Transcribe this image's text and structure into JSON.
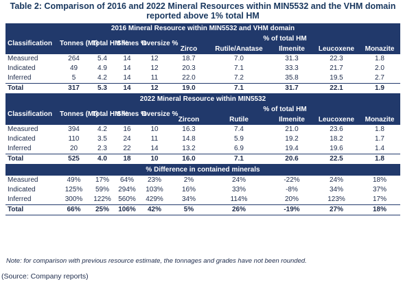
{
  "title_line1": "Table 2: Comparison of 2016 and 2022 Mineral Resources within MIN5532 and the VHM domain",
  "title_line2": "reported above 1% total HM",
  "section2016": {
    "band": "2016 Mineral Resource within MIN5532 and VHM domain",
    "pct_label": "% of total HM",
    "headers": [
      "Classification",
      "Tonnes (Mt)",
      "Total HM %",
      "Slimes %",
      "Oversize %",
      "Zirco",
      "Rutile/Anatase",
      "Ilmenite",
      "Leucoxene",
      "Monazite"
    ],
    "rows": [
      [
        "Measured",
        "264",
        "5.4",
        "14",
        "12",
        "18.7",
        "7.0",
        "31.3",
        "22.3",
        "1.8"
      ],
      [
        "Indicated",
        "49",
        "4.9",
        "14",
        "12",
        "20.3",
        "7.1",
        "33.3",
        "21.7",
        "2.0"
      ],
      [
        "Inferred",
        "5",
        "4.2",
        "14",
        "11",
        "22.0",
        "7.2",
        "35.8",
        "19.5",
        "2.7"
      ]
    ],
    "total": [
      "Total",
      "317",
      "5.3",
      "14",
      "12",
      "19.0",
      "7.1",
      "31.7",
      "22.1",
      "1.9"
    ]
  },
  "section2022": {
    "band": "2022 Mineral Resource within MIN5532",
    "pct_label": "% of total HM",
    "headers": [
      "Classification",
      "Tonnes (Mt)",
      "Total HM %",
      "Slimes %",
      "Oversize %",
      "Zircon",
      "Rutile",
      "Ilmenite",
      "Leucoxene",
      "Monazite"
    ],
    "rows": [
      [
        "Measured",
        "394",
        "4.2",
        "16",
        "10",
        "16.3",
        "7.4",
        "21.0",
        "23.6",
        "1.8"
      ],
      [
        "Indicated",
        "110",
        "3.5",
        "24",
        "11",
        "14.8",
        "5.9",
        "19.2",
        "18.2",
        "1.7"
      ],
      [
        "Inferred",
        "20",
        "2.3",
        "22",
        "14",
        "13.2",
        "6.9",
        "19.4",
        "19.6",
        "1.4"
      ]
    ],
    "total": [
      "Total",
      "525",
      "4.0",
      "18",
      "10",
      "16.0",
      "7.1",
      "20.6",
      "22.5",
      "1.8"
    ]
  },
  "difference": {
    "band": "% Difference in contained minerals",
    "rows": [
      [
        "Measured",
        "49%",
        "17%",
        "64%",
        "23%",
        "2%",
        "24%",
        "-22%",
        "24%",
        "18%"
      ],
      [
        "Indicated",
        "125%",
        "59%",
        "294%",
        "103%",
        "16%",
        "33%",
        "-8%",
        "34%",
        "37%"
      ],
      [
        "Inferred",
        "300%",
        "122%",
        "560%",
        "429%",
        "34%",
        "114%",
        "20%",
        "123%",
        "17%"
      ]
    ],
    "total": [
      "Total",
      "66%",
      "25%",
      "106%",
      "42%",
      "5%",
      "26%",
      "-19%",
      "27%",
      "18%"
    ]
  },
  "note": "Note: for comparison with previous resource estimate, the tonnages and grades have not been rounded.",
  "source": "(Source: Company reports)",
  "colors": {
    "header_bg": "#21396b",
    "header_text": "#ffffff",
    "title": "#17365d"
  }
}
